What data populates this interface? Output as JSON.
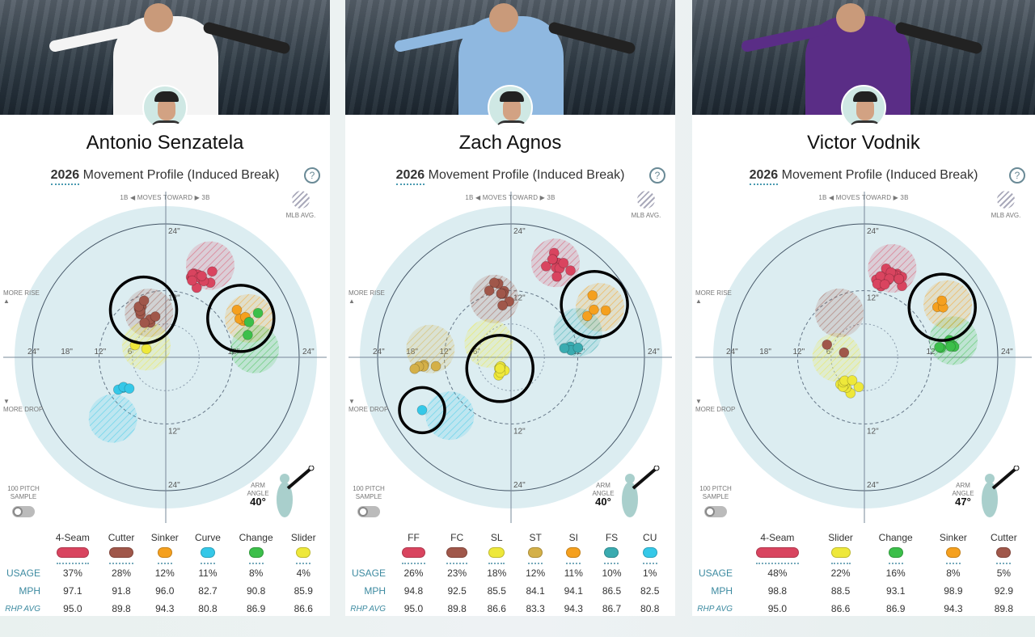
{
  "common": {
    "title_year": "2026",
    "title_rest": " Movement Profile (Induced Break)",
    "help": "?",
    "moves": "1B ◀  MOVES TOWARD  ▶ 3B",
    "mlb_avg": "MLB AVG.",
    "more_rise": "MORE RISE",
    "more_drop": "MORE DROP",
    "sample": "100 PITCH SAMPLE",
    "arm_angle": "ARM ANGLE",
    "row_labels": [
      "USAGE",
      "MPH",
      "RHP AVG"
    ],
    "rise_arrow": "▲",
    "drop_arrow": "▼"
  },
  "colors": {
    "FF": "#d9445f",
    "FC": "#a0574a",
    "SI": "#f5a01e",
    "CU": "#35c8e8",
    "CH": "#3cbf4a",
    "SL": "#eee83a",
    "ST": "#d4b048",
    "FS": "#3aabb0"
  },
  "panels": [
    {
      "name": "Antonio Senzatela",
      "jersey": "#f4f4f4",
      "arm_angle": "40°",
      "pitches": [
        {
          "code": "FF",
          "label": "4-Seam",
          "usage": "37%",
          "mph": "97.1",
          "rhp_avg": "95.0"
        },
        {
          "code": "FC",
          "label": "Cutter",
          "usage": "28%",
          "mph": "91.8",
          "rhp_avg": "89.8"
        },
        {
          "code": "SI",
          "label": "Sinker",
          "usage": "12%",
          "mph": "96.0",
          "rhp_avg": "94.3"
        },
        {
          "code": "CU",
          "label": "Curve",
          "usage": "11%",
          "mph": "82.7",
          "rhp_avg": "80.8"
        },
        {
          "code": "CH",
          "label": "Change",
          "usage": "8%",
          "mph": "90.8",
          "rhp_avg": "86.9"
        },
        {
          "code": "SL",
          "label": "Slider",
          "usage": "4%",
          "mph": "85.9",
          "rhp_avg": "86.6"
        }
      ]
    },
    {
      "name": "Zach Agnos",
      "jersey": "#8fb8e0",
      "arm_angle": "40°",
      "pitches": [
        {
          "code": "FF",
          "label": "FF",
          "usage": "26%",
          "mph": "94.8",
          "rhp_avg": "95.0"
        },
        {
          "code": "FC",
          "label": "FC",
          "usage": "23%",
          "mph": "92.5",
          "rhp_avg": "89.8"
        },
        {
          "code": "SL",
          "label": "SL",
          "usage": "18%",
          "mph": "85.5",
          "rhp_avg": "86.6"
        },
        {
          "code": "ST",
          "label": "ST",
          "usage": "12%",
          "mph": "84.1",
          "rhp_avg": "83.3"
        },
        {
          "code": "SI",
          "label": "SI",
          "usage": "11%",
          "mph": "94.1",
          "rhp_avg": "94.3"
        },
        {
          "code": "FS",
          "label": "FS",
          "usage": "10%",
          "mph": "86.5",
          "rhp_avg": "86.7"
        },
        {
          "code": "CU",
          "label": "CU",
          "usage": "1%",
          "mph": "82.5",
          "rhp_avg": "80.8"
        }
      ]
    },
    {
      "name": "Victor Vodnik",
      "jersey": "#5a2d86",
      "arm_angle": "47°",
      "pitches": [
        {
          "code": "FF",
          "label": "4-Seam",
          "usage": "48%",
          "mph": "98.8",
          "rhp_avg": "95.0"
        },
        {
          "code": "SL",
          "label": "Slider",
          "usage": "22%",
          "mph": "88.5",
          "rhp_avg": "86.6"
        },
        {
          "code": "CH",
          "label": "Change",
          "usage": "16%",
          "mph": "93.1",
          "rhp_avg": "86.9"
        },
        {
          "code": "SI",
          "label": "Sinker",
          "usage": "8%",
          "mph": "98.9",
          "rhp_avg": "94.3"
        },
        {
          "code": "FC",
          "label": "Cutter",
          "usage": "5%",
          "mph": "92.9",
          "rhp_avg": "89.8"
        }
      ]
    }
  ],
  "chart_data": [
    {
      "type": "scatter",
      "ticks": [
        "24\"",
        "18\"",
        "12\"",
        "6\""
      ],
      "xlim": [
        -24,
        24
      ],
      "ylim": [
        -24,
        24
      ],
      "clusters": [
        {
          "code": "FF",
          "x": 6,
          "y": 14.5,
          "avg_x": 8,
          "avg_y": 16.5
        },
        {
          "code": "FC",
          "x": -4,
          "y": 8.5,
          "avg_x": -3,
          "avg_y": 8
        },
        {
          "code": "SI",
          "x": 13.5,
          "y": 7,
          "avg_x": 15,
          "avg_y": 7
        },
        {
          "code": "CU",
          "x": -6.5,
          "y": -5,
          "avg_x": -9.5,
          "avg_y": -11
        },
        {
          "code": "CH",
          "x": 15,
          "y": 6,
          "avg_x": 16,
          "avg_y": 1.5
        },
        {
          "code": "SL",
          "x": -5.5,
          "y": 0.5,
          "avg_x": -3.5,
          "avg_y": 2
        }
      ],
      "highlighted": [
        "FC",
        "SI"
      ]
    },
    {
      "type": "scatter",
      "ticks": [
        "24\"",
        "18\"",
        "12\"",
        "6\""
      ],
      "xlim": [
        -24,
        24
      ],
      "ylim": [
        -24,
        24
      ],
      "clusters": [
        {
          "code": "FF",
          "x": 8.5,
          "y": 17,
          "avg_x": 8,
          "avg_y": 17
        },
        {
          "code": "FC",
          "x": -1.8,
          "y": 11.5,
          "avg_x": -3,
          "avg_y": 10.5
        },
        {
          "code": "SL",
          "x": -2,
          "y": -2,
          "avg_x": -4,
          "avg_y": 2.5
        },
        {
          "code": "ST",
          "x": -15.5,
          "y": -1.5,
          "avg_x": -14.5,
          "avg_y": 1.5
        },
        {
          "code": "SI",
          "x": 15,
          "y": 9.5,
          "avg_x": 16,
          "avg_y": 9
        },
        {
          "code": "FS",
          "x": 10.5,
          "y": 2,
          "avg_x": 12,
          "avg_y": 4.5
        },
        {
          "code": "CU",
          "x": -16,
          "y": -9.5,
          "avg_x": -11,
          "avg_y": -10.5
        }
      ],
      "highlighted": [
        "SI",
        "SL",
        "CU"
      ]
    },
    {
      "type": "scatter",
      "ticks": [
        "24\"",
        "18\"",
        "12\"",
        "6\""
      ],
      "xlim": [
        -24,
        24
      ],
      "ylim": [
        -24,
        24
      ],
      "clusters": [
        {
          "code": "FF",
          "x": 4.5,
          "y": 14,
          "avg_x": 5,
          "avg_y": 16
        },
        {
          "code": "SL",
          "x": -3.5,
          "y": -5,
          "avg_x": -5,
          "avg_y": 0
        },
        {
          "code": "CH",
          "x": 15.5,
          "y": 3,
          "avg_x": 16,
          "avg_y": 3
        },
        {
          "code": "SI",
          "x": 14,
          "y": 9,
          "avg_x": 15,
          "avg_y": 9.5
        },
        {
          "code": "FC",
          "x": -4.5,
          "y": 1.5,
          "avg_x": -4.5,
          "avg_y": 8
        }
      ],
      "highlighted": [
        "SI"
      ]
    }
  ]
}
